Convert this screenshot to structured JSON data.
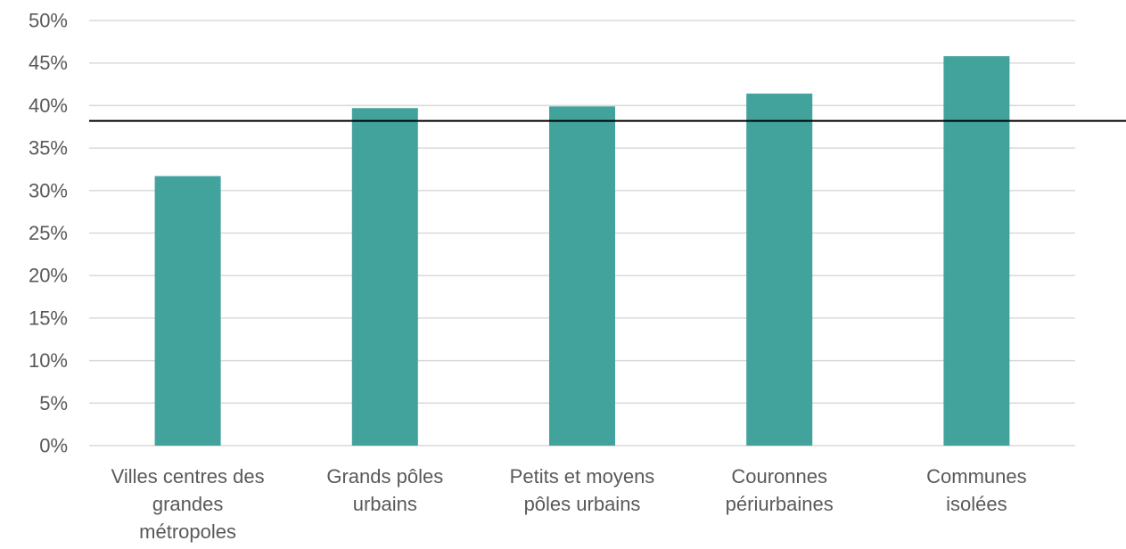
{
  "chart_data": {
    "type": "bar",
    "categories": [
      "Villes centres des grandes métropoles",
      "Grands pôles urbains",
      "Petits et moyens pôles urbains",
      "Couronnes périurbaines",
      "Communes isolées"
    ],
    "category_lines": [
      [
        "Villes centres des",
        "grandes",
        "métropoles"
      ],
      [
        "Grands pôles",
        "urbains"
      ],
      [
        "Petits et moyens",
        "pôles urbains"
      ],
      [
        "Couronnes",
        "périurbaines"
      ],
      [
        "Communes",
        "isolées"
      ]
    ],
    "values": [
      31.7,
      39.7,
      39.9,
      41.4,
      45.8
    ],
    "reference_line": 38.2,
    "ylim": [
      0,
      50
    ],
    "yticks": [
      0,
      5,
      10,
      15,
      20,
      25,
      30,
      35,
      40,
      45,
      50
    ],
    "ytick_labels": [
      "0%",
      "5%",
      "10%",
      "15%",
      "20%",
      "25%",
      "30%",
      "35%",
      "40%",
      "45%",
      "50%"
    ],
    "title": "",
    "xlabel": "",
    "ylabel": "",
    "grid": true,
    "legend": "none",
    "colors": {
      "bar": "#42a29c",
      "grid": "#d9d9d9",
      "reference_line": "#000000",
      "text": "#595959"
    }
  }
}
